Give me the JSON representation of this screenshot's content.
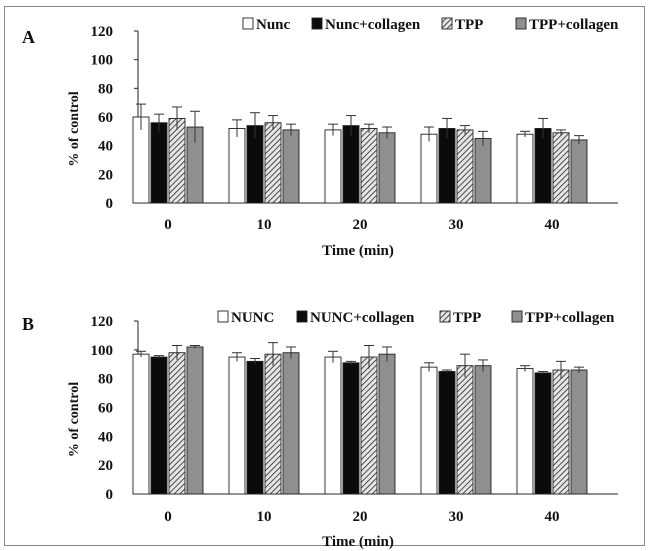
{
  "colors": {
    "axis": "#222222",
    "white_fill": "#ffffff",
    "black_fill": "#0b0b0b",
    "hatch_fill": "#e6e6e6",
    "gray_fill": "#8f8f8f",
    "error_bar": "#333333"
  },
  "chart_data": [
    {
      "type": "bar",
      "panel_label": "A",
      "title": "",
      "xlabel": "Time (min)",
      "ylabel": "% of control",
      "categories": [
        "0",
        "10",
        "20",
        "30",
        "40"
      ],
      "ylim": [
        0,
        120
      ],
      "yticks": [
        "0",
        "20",
        "40",
        "60",
        "80",
        "100",
        "120"
      ],
      "legend_position": "top-right",
      "series": [
        {
          "name": "Nunc",
          "style": "white",
          "values": [
            60,
            52,
            51,
            48,
            48
          ],
          "errors": [
            9,
            6,
            4,
            5,
            2
          ]
        },
        {
          "name": "Nunc+collagen",
          "style": "black",
          "values": [
            56,
            54,
            54,
            52,
            52
          ],
          "errors": [
            6,
            9,
            7,
            7,
            7
          ]
        },
        {
          "name": "TPP",
          "style": "hatch",
          "values": [
            59,
            56,
            52,
            51,
            49
          ],
          "errors": [
            8,
            5,
            3,
            3,
            2
          ]
        },
        {
          "name": "TPP+collagen",
          "style": "gray",
          "values": [
            53,
            51,
            49,
            45,
            44
          ],
          "errors": [
            11,
            4,
            4,
            5,
            3
          ]
        }
      ]
    },
    {
      "type": "bar",
      "panel_label": "B",
      "title": "",
      "xlabel": "Time (min)",
      "ylabel": "% of control",
      "categories": [
        "0",
        "10",
        "20",
        "30",
        "40"
      ],
      "ylim": [
        0,
        120
      ],
      "yticks": [
        "0",
        "20",
        "40",
        "60",
        "80",
        "100",
        "120"
      ],
      "legend_position": "top-right",
      "series": [
        {
          "name": "NUNC",
          "style": "white",
          "values": [
            97,
            95,
            95,
            88,
            87
          ],
          "errors": [
            2,
            3,
            4,
            3,
            2
          ]
        },
        {
          "name": "NUNC+collagen",
          "style": "black",
          "values": [
            95,
            92,
            91,
            85,
            84
          ],
          "errors": [
            1,
            2,
            1,
            1,
            1
          ]
        },
        {
          "name": "TPP",
          "style": "hatch",
          "values": [
            98,
            97,
            95,
            89,
            86
          ],
          "errors": [
            5,
            8,
            8,
            8,
            6
          ]
        },
        {
          "name": "TPP+collagen",
          "style": "gray",
          "values": [
            102,
            98,
            97,
            89,
            86
          ],
          "errors": [
            1,
            4,
            5,
            4,
            2
          ]
        }
      ]
    }
  ]
}
